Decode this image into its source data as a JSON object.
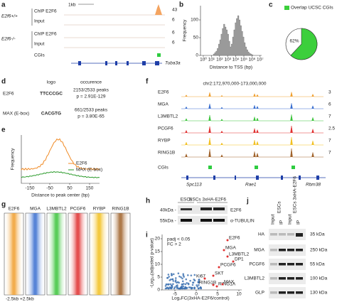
{
  "a": {
    "label": "a",
    "scale": "1kb",
    "genotypes": [
      "E2f6+/+",
      "E2f6-/-"
    ],
    "tracks": [
      {
        "name": "ChIP E2F6",
        "max": "43"
      },
      {
        "name": "Input",
        "max": "6"
      },
      {
        "name": "ChIP E2F6",
        "max": "6"
      },
      {
        "name": "Input",
        "max": "6"
      }
    ],
    "cgis": "CGIs",
    "gene": "Tuba3a"
  },
  "b": {
    "label": "b",
    "y_label": "Frequency",
    "x_label": "Distance to TSS (bp)",
    "yticks": [
      "0",
      "50",
      "100"
    ],
    "xticks": [
      "10⁰",
      "10¹",
      "10²",
      "10³",
      "10⁴",
      "10⁵",
      "10⁶",
      "10⁷"
    ]
  },
  "c": {
    "label": "c",
    "legend": "Overlap UCSC CGIs",
    "value": 62,
    "value_label": "62%"
  },
  "d": {
    "label": "d",
    "headers": [
      "logo",
      "occurence"
    ],
    "rows": [
      {
        "name": "E2F6",
        "logo": "TTCCCGC",
        "peaks": "2153/2533 peaks",
        "p": "p = 2.91E-129"
      },
      {
        "name": "MAX (E-box)",
        "logo": "CACGTG",
        "peaks": "661/2533 peaks",
        "p": "p = 3.80E-65"
      }
    ]
  },
  "e": {
    "label": "e",
    "y_label": "Frequency",
    "x_label": "Distance to peak center (bp)",
    "xticks": [
      "-150",
      "-50",
      "50",
      "150"
    ],
    "legend": [
      "E2F6",
      "MAX (E-box)"
    ]
  },
  "f": {
    "label": "f",
    "locus": "chr2:172,970,000-173,000,000",
    "tracks": [
      {
        "name": "E2F6",
        "max": "3"
      },
      {
        "name": "MGA",
        "max": "6"
      },
      {
        "name": "L3MBTL2",
        "max": "7"
      },
      {
        "name": "PCGF6",
        "max": "2.5"
      },
      {
        "name": "RYBP",
        "max": "7"
      },
      {
        "name": "RING1B",
        "max": "7"
      }
    ],
    "cgis": "CGIs",
    "genes": [
      "Spc113",
      "Rae1",
      "Rbm38"
    ]
  },
  "g": {
    "label": "g",
    "columns": [
      "E2F6",
      "MGA",
      "L3MBTL2",
      "PCGF6",
      "RYBP",
      "RING1B"
    ],
    "ends": [
      "-2.5kb",
      "+2.5kb"
    ]
  },
  "h": {
    "label": "h",
    "lanes": [
      "ESCs",
      "ESCs 3xHA-E2F6"
    ],
    "markers": [
      "40kDa -",
      "55kDa -"
    ],
    "bands": [
      "E2F6",
      "α-TUBULIN"
    ]
  },
  "i": {
    "label": "i",
    "criteria": [
      "padj < 0.05",
      "FC > 2"
    ],
    "y_label": "-Log₁₀(adjusted p-value)",
    "x_label": "Log₂FC(3xHA-E2F6/control)",
    "yticks": [
      "0",
      "5",
      "10",
      "15",
      "20"
    ],
    "xticks": [
      "-5",
      "0",
      "5",
      "10"
    ],
    "hits": [
      "E2F6",
      "MGA",
      "L3MBTL2",
      "DP1",
      "PCGF6",
      "SKT",
      "Ki67",
      "RING1B",
      "RING1A",
      "MAX"
    ]
  },
  "j": {
    "label": "j",
    "groups": [
      "ESCs",
      "ESCs 3xHA-E2F6"
    ],
    "lanes": [
      "Input",
      "IP",
      "Input",
      "IP"
    ],
    "rows": [
      {
        "name": "HA",
        "marker": "35 kDa"
      },
      {
        "name": "MGA",
        "marker": "250 kDa"
      },
      {
        "name": "PCGF6",
        "marker": "55 kDa"
      },
      {
        "name": "L3MBTL2",
        "marker": "100 kDa"
      },
      {
        "name": "GLP",
        "marker": "130 kDa"
      }
    ]
  }
}
